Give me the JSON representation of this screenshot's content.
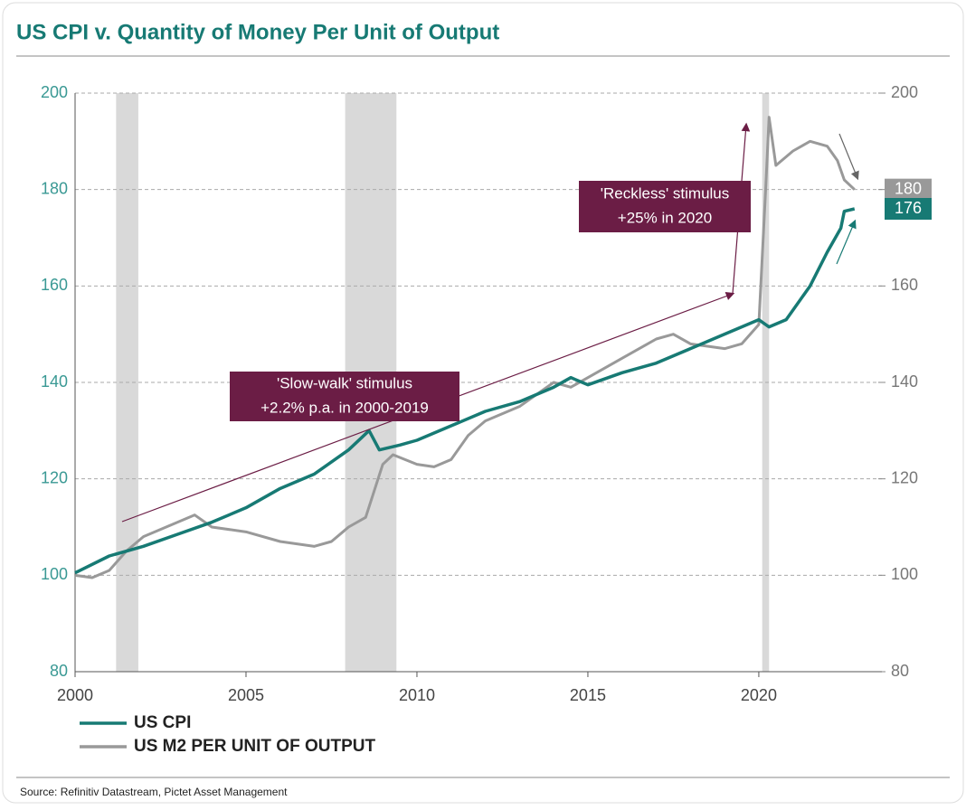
{
  "chart_data": {
    "type": "line",
    "title": "US CPI v. Quantity of Money Per Unit of Output",
    "source": "Source: Refinitiv Datastream, Pictet Asset Management",
    "xlim": [
      2000,
      2023.6
    ],
    "xticks": [
      2000,
      2005,
      2010,
      2015,
      2020
    ],
    "ylim": [
      80,
      200
    ],
    "yticks": [
      80,
      100,
      120,
      140,
      160,
      180,
      200
    ],
    "y2lim": [
      80,
      200
    ],
    "y2ticks": [
      80,
      100,
      120,
      140,
      160,
      180,
      200
    ],
    "grid": true,
    "shaded_periods": [
      [
        2001.2,
        2001.85
      ],
      [
        2007.9,
        2009.4
      ],
      [
        2020.1,
        2020.3
      ]
    ],
    "annotations": [
      {
        "lines": [
          "'Slow-walk' stimulus",
          "+2.2% p.a. in 2000-2019"
        ]
      },
      {
        "lines": [
          "'Reckless' stimulus",
          "+25% in 2020"
        ]
      }
    ],
    "series": [
      {
        "name": "US CPI",
        "color": "#177a74",
        "end_label": 176,
        "x": [
          2000,
          2001,
          2002,
          2003,
          2004,
          2005,
          2006,
          2007,
          2008,
          2008.6,
          2008.9,
          2009.5,
          2010,
          2011,
          2012,
          2013,
          2014,
          2014.5,
          2015,
          2016,
          2017,
          2018,
          2019,
          2020,
          2020.3,
          2020.8,
          2021,
          2021.5,
          2022,
          2022.4,
          2022.5,
          2022.8
        ],
        "values": [
          100.5,
          104,
          106,
          108.5,
          111,
          114,
          118,
          121,
          126,
          130,
          126,
          127,
          128,
          131,
          134,
          136,
          139,
          141,
          139.5,
          142,
          144,
          147,
          150,
          153,
          151.5,
          153,
          155,
          160,
          167,
          172,
          175.5,
          176
        ]
      },
      {
        "name": "US M2 PER UNIT OF OUTPUT",
        "color": "#999999",
        "end_label": 180,
        "x": [
          2000,
          2000.5,
          2001,
          2001.5,
          2002,
          2003,
          2003.5,
          2004,
          2005,
          2006,
          2007,
          2007.5,
          2008,
          2008.5,
          2009,
          2009.3,
          2010,
          2010.5,
          2011,
          2011.5,
          2012,
          2013,
          2014,
          2014.5,
          2015,
          2016,
          2017,
          2017.5,
          2018,
          2019,
          2019.5,
          2020,
          2020.2,
          2020.3,
          2020.5,
          2021,
          2021.5,
          2022,
          2022.3,
          2022.5,
          2022.8
        ],
        "values": [
          100,
          99.5,
          101,
          105,
          108,
          111,
          112.5,
          110,
          109,
          107,
          106,
          107,
          110,
          112,
          123,
          125,
          123,
          122.5,
          124,
          129,
          132,
          135,
          140,
          139,
          141,
          145,
          149,
          150,
          148,
          147,
          148,
          152,
          180,
          195,
          185,
          188,
          190,
          189,
          186,
          182,
          180
        ]
      }
    ]
  }
}
